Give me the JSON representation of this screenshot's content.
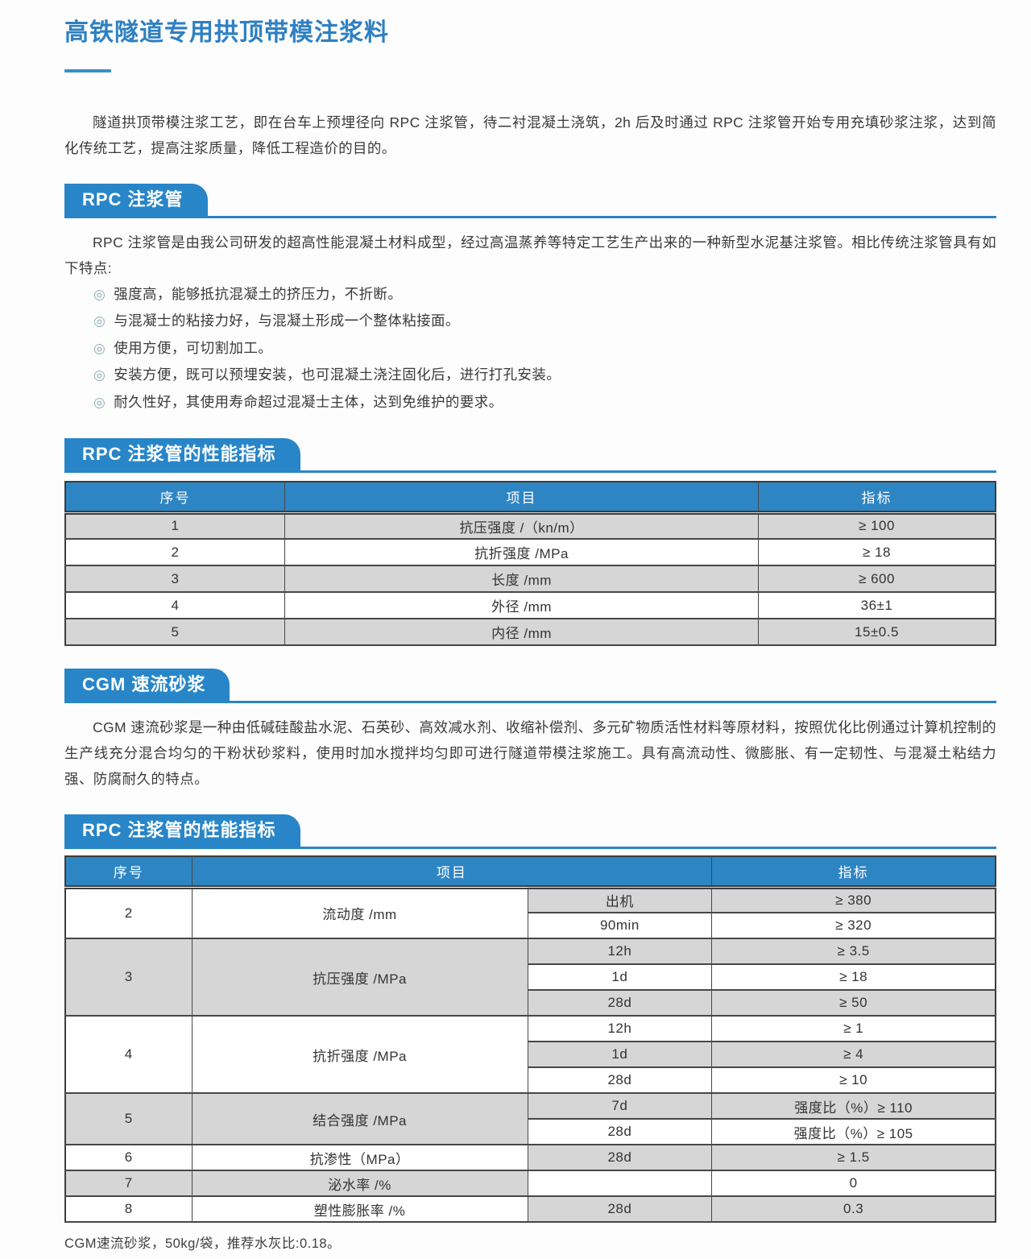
{
  "page": {
    "title": "高铁隧道专用拱顶带模注浆料",
    "intro": "隧道拱顶带模注浆工艺，即在台车上预埋径向 RPC 注浆管，待二衬混凝土浇筑，2h 后及时通过 RPC 注浆管开始专用充填砂浆注浆，达到简化传统工艺，提高注浆质量，降低工程造价的目的。",
    "footnote": "CGM速流砂浆，50kg/袋，推荐水灰比:0.18。"
  },
  "colors": {
    "accent_blue": "#2b84c5",
    "badge_blue": "#2886c8",
    "table_header_blue": "#2e85c4",
    "row_grey": "#d6d6d6",
    "bullet_teal": "#8fb0ba"
  },
  "rpc_section": {
    "badge": "RPC 注浆管",
    "desc": "RPC 注浆管是由我公司研发的超高性能混凝土材料成型，经过高温蒸养等特定工艺生产出来的一种新型水泥基注浆管。相比传统注浆管具有如下特点:",
    "bullet_marker": "◎",
    "bullets": [
      "强度高，能够抵抗混凝土的挤压力，不折断。",
      "与混凝士的粘接力好，与混凝土形成一个整体粘接面。",
      "使用方便，可切割加工。",
      "安装方便，既可以预埋安装，也可混凝土浇注固化后，进行打孔安装。",
      "耐久性好，其使用寿命超过混凝士主体，达到免维护的要求。"
    ]
  },
  "rpc_table_section": {
    "badge": "RPC 注浆管的性能指标",
    "headers": [
      "序号",
      "项目",
      "指标"
    ],
    "rows": [
      {
        "no": "1",
        "item": "抗压强度 /（kn/m）",
        "value": "≥ 100"
      },
      {
        "no": "2",
        "item": "抗折强度 /MPa",
        "value": "≥ 18"
      },
      {
        "no": "3",
        "item": "长度 /mm",
        "value": "≥ 600"
      },
      {
        "no": "4",
        "item": "外径 /mm",
        "value": "36±1"
      },
      {
        "no": "5",
        "item": "内径 /mm",
        "value": "15±0.5"
      }
    ]
  },
  "cgm_section": {
    "badge": "CGM 速流砂浆",
    "desc": "CGM 速流砂浆是一种由低碱硅酸盐水泥、石英砂、高效减水剂、收缩补偿剂、多元矿物质活性材料等原材料，按照优化比例通过计算机控制的生产线充分混合均匀的干粉状砂浆料，使用时加水搅拌均匀即可进行隧道带模注浆施工。具有高流动性、微膨胀、有一定韧性、与混凝土粘结力强、防腐耐久的特点。"
  },
  "cgm_table_section": {
    "badge": "RPC 注浆管的性能指标",
    "headers": [
      "序号",
      "项目",
      "指标"
    ],
    "groups": [
      {
        "no": "2",
        "item": "流动度 /mm",
        "subs": [
          {
            "cond": "出机",
            "value": "≥ 380"
          },
          {
            "cond": "90min",
            "value": "≥ 320"
          }
        ]
      },
      {
        "no": "3",
        "item": "抗压强度 /MPa",
        "subs": [
          {
            "cond": "12h",
            "value": "≥ 3.5"
          },
          {
            "cond": "1d",
            "value": "≥ 18"
          },
          {
            "cond": "28d",
            "value": "≥ 50"
          }
        ]
      },
      {
        "no": "4",
        "item": "抗折强度 /MPa",
        "subs": [
          {
            "cond": "12h",
            "value": "≥ 1"
          },
          {
            "cond": "1d",
            "value": "≥ 4"
          },
          {
            "cond": "28d",
            "value": "≥ 10"
          }
        ]
      },
      {
        "no": "5",
        "item": "结合强度 /MPa",
        "subs": [
          {
            "cond": "7d",
            "value": "强度比（%）≥ 110"
          },
          {
            "cond": "28d",
            "value": "强度比（%）≥ 105"
          }
        ]
      },
      {
        "no": "6",
        "item": "抗渗性（MPa）",
        "subs": [
          {
            "cond": "28d",
            "value": "≥ 1.5"
          }
        ]
      },
      {
        "no": "7",
        "item": "泌水率 /%",
        "subs": [
          {
            "cond": "",
            "value": "0"
          }
        ]
      },
      {
        "no": "8",
        "item": "塑性膨胀率 /%",
        "subs": [
          {
            "cond": "28d",
            "value": "0.3"
          }
        ]
      }
    ]
  }
}
